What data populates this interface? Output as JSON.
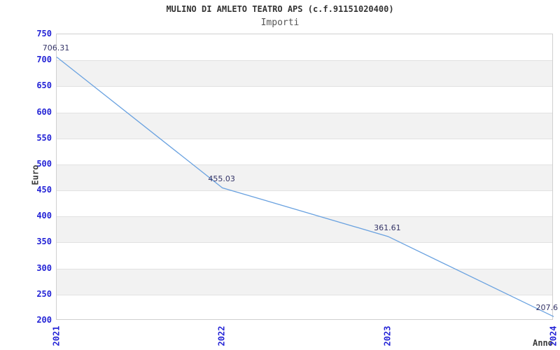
{
  "chart_data": {
    "type": "line",
    "title": "MULINO DI AMLETO TEATRO APS (c.f.91151020400)",
    "subtitle": "Importi",
    "xlabel": "Anno",
    "ylabel": "Euro",
    "categories": [
      "2021",
      "2022",
      "2023",
      "2024"
    ],
    "values": [
      706.31,
      455.03,
      361.61,
      207.6
    ],
    "point_labels": [
      "706.31",
      "455.03",
      "361.61",
      "207.6"
    ],
    "ylim": [
      200,
      750
    ],
    "ytick_step": 50,
    "yticks": [
      750,
      700,
      650,
      600,
      550,
      500,
      450,
      400,
      350,
      300,
      250,
      200
    ],
    "grid": "horizontal-alternating-bands",
    "legend": "none",
    "colors": {
      "line": "#6aa2e0",
      "tick_label": "#2424d6",
      "point_label": "#333366",
      "band": "#f2f2f2",
      "gridline": "#e2e2e2",
      "plot_border": "#d0d0d0",
      "title": "#333333",
      "subtitle": "#555555",
      "axis_label": "#3c3c3c",
      "background": "#ffffff"
    }
  }
}
